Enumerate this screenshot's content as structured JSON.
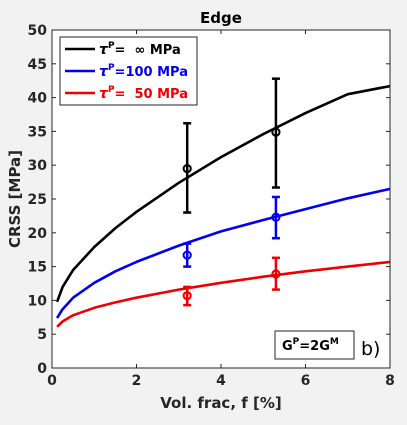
{
  "chart_data": {
    "type": "line",
    "title": "Edge",
    "xlabel": "Vol. frac, f [%]",
    "ylabel": "CRSS [MPa]",
    "xlim": [
      0,
      8
    ],
    "ylim": [
      0,
      50
    ],
    "xticks": [
      0,
      2,
      4,
      6,
      8
    ],
    "yticks": [
      0,
      5,
      10,
      15,
      20,
      25,
      30,
      35,
      40,
      45,
      50
    ],
    "grid": false,
    "legend_position": "top-left",
    "series": [
      {
        "name": "=  ∞ MPa",
        "color": "#000000",
        "x": [
          0.12,
          0.25,
          0.5,
          1,
          1.5,
          2,
          3,
          4,
          5,
          6,
          7,
          8
        ],
        "y": [
          9.8,
          12.0,
          14.5,
          17.9,
          20.7,
          23.1,
          27.4,
          31.2,
          34.6,
          37.7,
          40.5,
          41.7
        ]
      },
      {
        "name": "=100 MPa",
        "color": "#0000ee",
        "x": [
          0.12,
          0.25,
          0.5,
          1,
          1.5,
          2,
          3,
          4,
          5,
          6,
          7,
          8
        ],
        "y": [
          7.4,
          8.7,
          10.4,
          12.6,
          14.3,
          15.7,
          18.1,
          20.2,
          21.9,
          23.5,
          25.1,
          26.5
        ]
      },
      {
        "name": "=  50 MPa",
        "color": "#ee0000",
        "x": [
          0.12,
          0.25,
          0.5,
          1,
          1.5,
          2,
          3,
          4,
          5,
          6,
          7,
          8
        ],
        "y": [
          6.1,
          6.9,
          7.8,
          8.9,
          9.7,
          10.4,
          11.6,
          12.6,
          13.5,
          14.3,
          15.0,
          15.7
        ]
      }
    ],
    "measurements": [
      {
        "series": "=  ∞ MPa",
        "color": "#000000",
        "points": [
          {
            "x": 3.2,
            "y": 29.5,
            "low": 23.0,
            "high": 36.2
          },
          {
            "x": 5.3,
            "y": 34.9,
            "low": 26.7,
            "high": 42.8
          }
        ]
      },
      {
        "series": "=100 MPa",
        "color": "#0000ee",
        "points": [
          {
            "x": 3.2,
            "y": 16.7,
            "low": 15.0,
            "high": 18.4
          },
          {
            "x": 5.3,
            "y": 22.3,
            "low": 19.2,
            "high": 25.3
          }
        ]
      },
      {
        "series": "=  50 MPa",
        "color": "#ee0000",
        "points": [
          {
            "x": 3.2,
            "y": 10.7,
            "low": 9.3,
            "high": 12.0
          },
          {
            "x": 5.3,
            "y": 13.9,
            "low": 11.6,
            "high": 16.3
          }
        ]
      }
    ],
    "legend": {
      "symbol": "τ",
      "superscript": "P",
      "entries": [
        "=  ∞ MPa",
        "=100 MPa",
        "=  50 MPa"
      ]
    },
    "annotations": {
      "box_base": "G",
      "box_sup1": "P",
      "box_mid": "=2G",
      "box_sup2": "M",
      "panel_label": "b)"
    }
  }
}
